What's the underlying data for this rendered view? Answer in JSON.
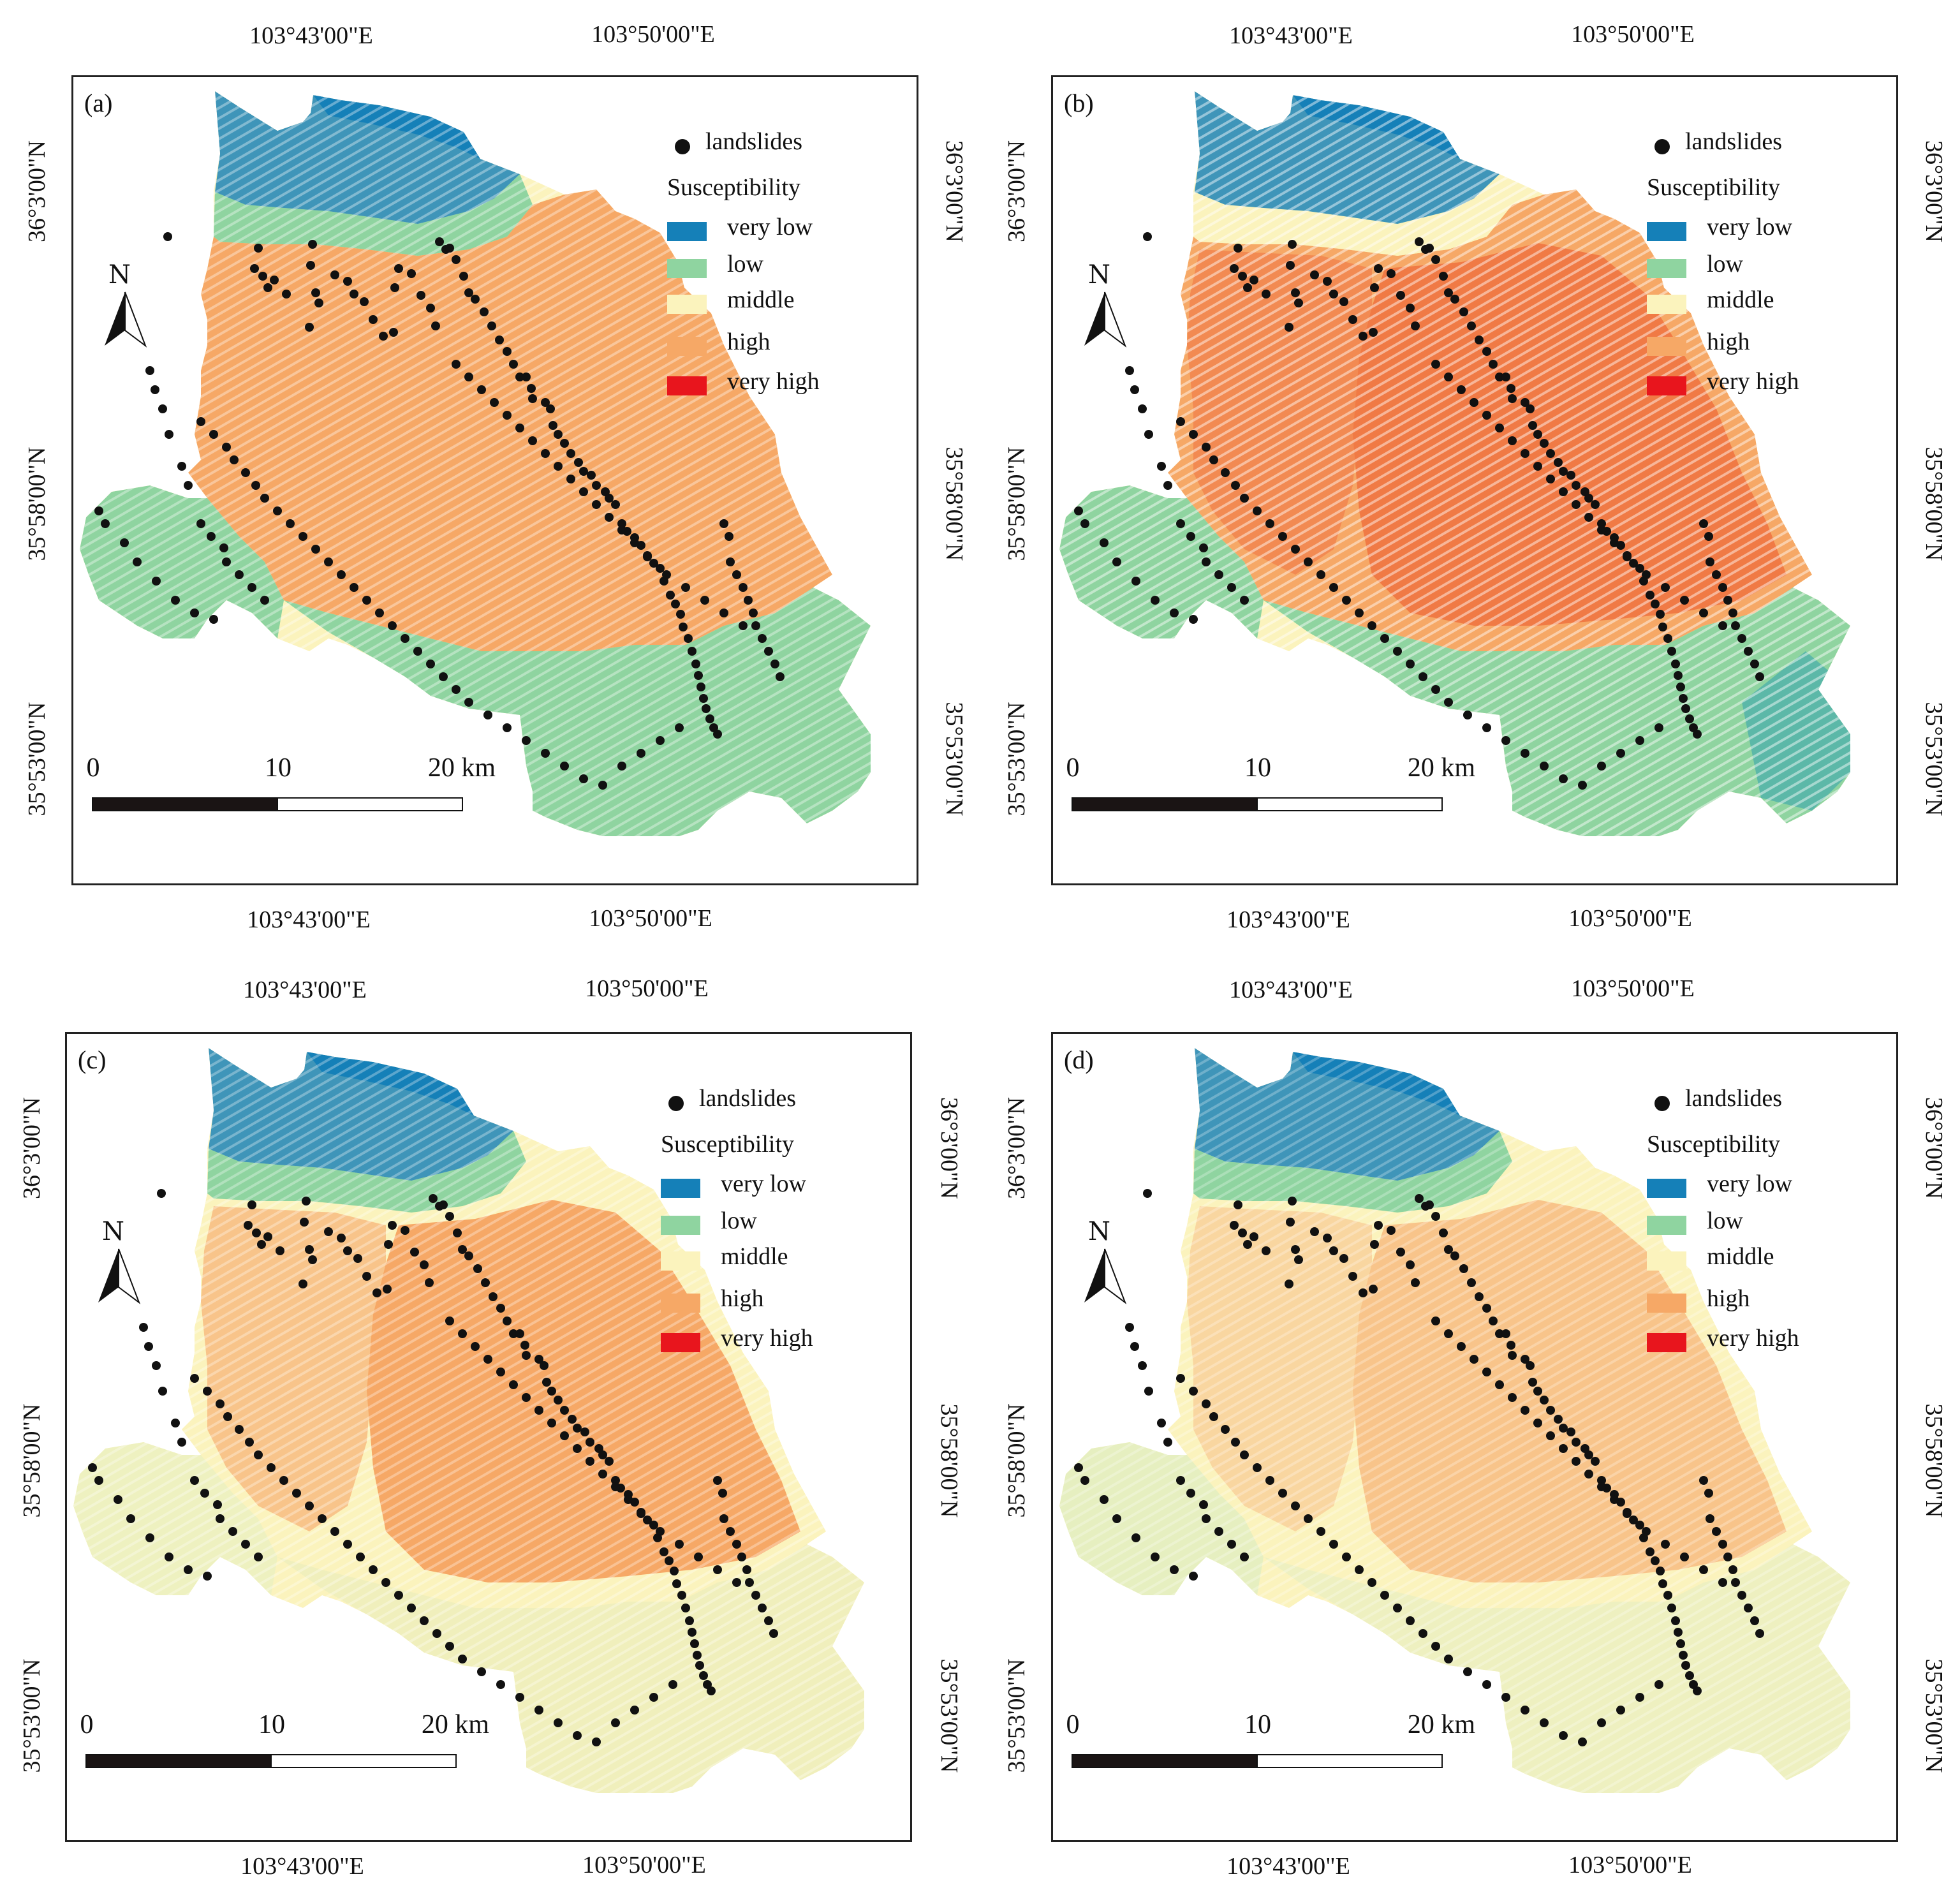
{
  "colors": {
    "very_low": "#1580b8",
    "low": "#8fd4a0",
    "middle": "#fbf3bd",
    "high": "#f6a866",
    "very_high": "#e8151d",
    "landslide": "#111111"
  },
  "axes": {
    "lon_ticks": [
      "103°43'00\"E",
      "103°50'00\"E"
    ],
    "lat_ticks": [
      "36°3'00\"N",
      "35°58'00\"N",
      "35°53'00\"N"
    ]
  },
  "legend": {
    "landslides": "landslides",
    "title": "Susceptibility",
    "classes": [
      "very low",
      "low",
      "middle",
      "high",
      "very high"
    ]
  },
  "north_label": "N",
  "scale_bar": {
    "labels": [
      "0",
      "10",
      "20 km"
    ]
  },
  "panels": [
    {
      "label": "(a)"
    },
    {
      "label": "(b)"
    },
    {
      "label": "(c)"
    },
    {
      "label": "(d)"
    }
  ]
}
